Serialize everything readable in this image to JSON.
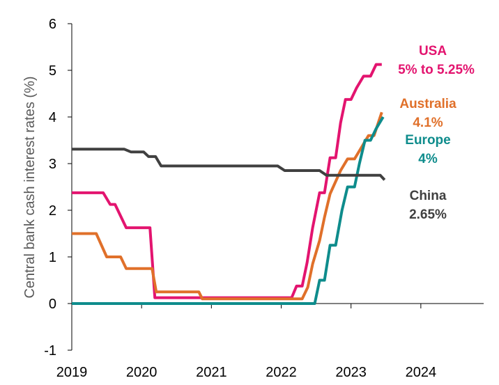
{
  "chart_data": {
    "type": "line",
    "title": "",
    "xlabel": "",
    "ylabel": "Central bank cash interest rates (%)",
    "xlim": [
      2019,
      2024.9
    ],
    "ylim": [
      -1,
      6
    ],
    "x_ticks": [
      2019,
      2020,
      2021,
      2022,
      2023,
      2024
    ],
    "y_ticks": [
      -1,
      0,
      1,
      2,
      3,
      4,
      5,
      6
    ],
    "grid": false,
    "legend": "none",
    "series": [
      {
        "name": "USA",
        "color": "#E3146F",
        "points": [
          [
            2019.0,
            2.375
          ],
          [
            2019.45,
            2.375
          ],
          [
            2019.55,
            2.125
          ],
          [
            2019.62,
            2.125
          ],
          [
            2019.7,
            1.875
          ],
          [
            2019.78,
            1.625
          ],
          [
            2020.12,
            1.625
          ],
          [
            2020.19,
            0.125
          ],
          [
            2022.15,
            0.125
          ],
          [
            2022.22,
            0.375
          ],
          [
            2022.3,
            0.375
          ],
          [
            2022.37,
            0.875
          ],
          [
            2022.45,
            1.625
          ],
          [
            2022.55,
            2.375
          ],
          [
            2022.62,
            2.375
          ],
          [
            2022.7,
            3.125
          ],
          [
            2022.78,
            3.125
          ],
          [
            2022.85,
            3.875
          ],
          [
            2022.92,
            4.375
          ],
          [
            2023.0,
            4.375
          ],
          [
            2023.08,
            4.625
          ],
          [
            2023.18,
            4.875
          ],
          [
            2023.28,
            4.875
          ],
          [
            2023.36,
            5.125
          ],
          [
            2023.44,
            5.125
          ]
        ]
      },
      {
        "name": "Australia",
        "color": "#E0702A",
        "points": [
          [
            2019.0,
            1.5
          ],
          [
            2019.35,
            1.5
          ],
          [
            2019.5,
            1.0
          ],
          [
            2019.7,
            1.0
          ],
          [
            2019.78,
            0.75
          ],
          [
            2020.15,
            0.75
          ],
          [
            2020.21,
            0.25
          ],
          [
            2020.82,
            0.25
          ],
          [
            2020.87,
            0.1
          ],
          [
            2022.3,
            0.1
          ],
          [
            2022.38,
            0.35
          ],
          [
            2022.45,
            0.85
          ],
          [
            2022.55,
            1.35
          ],
          [
            2022.62,
            1.85
          ],
          [
            2022.7,
            2.35
          ],
          [
            2022.85,
            2.85
          ],
          [
            2022.95,
            3.1
          ],
          [
            2023.05,
            3.1
          ],
          [
            2023.15,
            3.35
          ],
          [
            2023.25,
            3.6
          ],
          [
            2023.33,
            3.6
          ],
          [
            2023.44,
            4.1
          ]
        ]
      },
      {
        "name": "Europe",
        "color": "#0E8C8C",
        "points": [
          [
            2019.0,
            0.0
          ],
          [
            2022.48,
            0.0
          ],
          [
            2022.55,
            0.5
          ],
          [
            2022.62,
            0.5
          ],
          [
            2022.7,
            1.25
          ],
          [
            2022.78,
            1.25
          ],
          [
            2022.87,
            2.0
          ],
          [
            2022.95,
            2.5
          ],
          [
            2023.05,
            2.5
          ],
          [
            2023.12,
            3.0
          ],
          [
            2023.2,
            3.5
          ],
          [
            2023.28,
            3.5
          ],
          [
            2023.36,
            3.75
          ],
          [
            2023.46,
            4.0
          ]
        ]
      },
      {
        "name": "China",
        "color": "#404040",
        "points": [
          [
            2019.0,
            3.31
          ],
          [
            2019.75,
            3.31
          ],
          [
            2019.85,
            3.25
          ],
          [
            2020.03,
            3.25
          ],
          [
            2020.1,
            3.15
          ],
          [
            2020.2,
            3.15
          ],
          [
            2020.28,
            2.95
          ],
          [
            2021.95,
            2.95
          ],
          [
            2022.05,
            2.85
          ],
          [
            2022.55,
            2.85
          ],
          [
            2022.65,
            2.75
          ],
          [
            2023.42,
            2.75
          ],
          [
            2023.48,
            2.65
          ]
        ]
      }
    ],
    "annotations": [
      {
        "series": "USA",
        "line1": "USA",
        "line2": "5% to 5.25%",
        "color": "#E3146F"
      },
      {
        "series": "Australia",
        "line1": "Australia",
        "line2": "4.1%",
        "color": "#E0702A"
      },
      {
        "series": "Europe",
        "line1": "Europe",
        "line2": "4%",
        "color": "#0E8C8C"
      },
      {
        "series": "China",
        "line1": "China",
        "line2": "2.65%",
        "color": "#404040"
      }
    ]
  }
}
